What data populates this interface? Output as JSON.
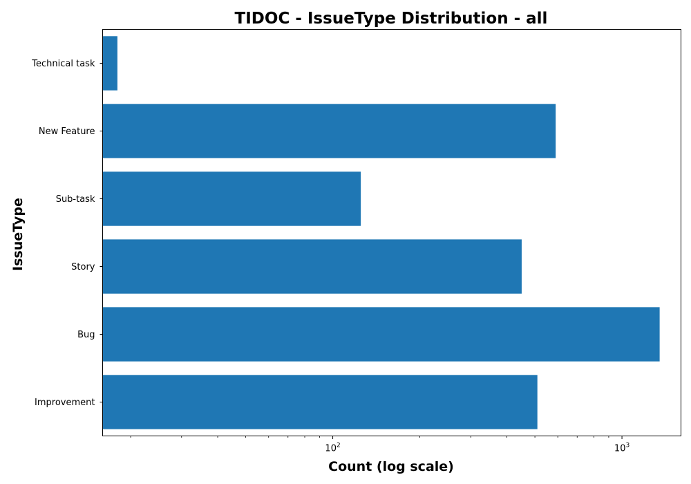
{
  "chart_data": {
    "type": "bar",
    "orientation": "horizontal",
    "title": "TIDOC - IssueType Distribution - all",
    "xlabel": "Count (log scale)",
    "ylabel": "IssueType",
    "x_scale": "log",
    "xlim": [
      16,
      1600
    ],
    "x_ticks": [
      {
        "base": "10",
        "exp": "2",
        "value": 100
      },
      {
        "base": "10",
        "exp": "3",
        "value": 1000
      }
    ],
    "categories": [
      "Improvement",
      "Bug",
      "Story",
      "Sub-task",
      "New Feature",
      "Technical task"
    ],
    "values": [
      510,
      1350,
      450,
      125,
      590,
      18
    ],
    "bar_color": "#1f77b4",
    "grid": false,
    "legend": "none"
  }
}
